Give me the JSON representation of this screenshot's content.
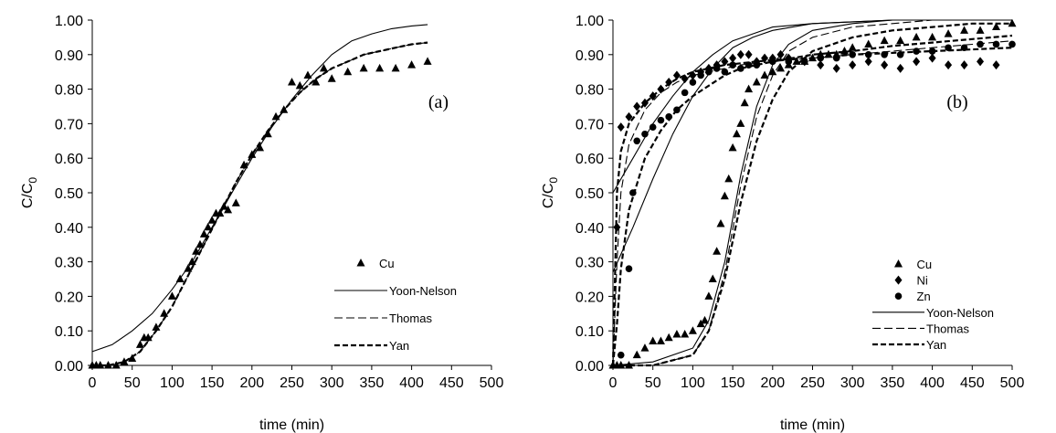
{
  "chart_data": [
    {
      "type": "scatter",
      "panel_label": "(a)",
      "xlabel": "time (min)",
      "ylabel": "C/C",
      "ylabel_sub": "0",
      "xlim": [
        0,
        500
      ],
      "ylim": [
        0,
        1
      ],
      "xticks": [
        0,
        50,
        100,
        150,
        200,
        250,
        300,
        350,
        400,
        450,
        500
      ],
      "yticks": [
        0.0,
        0.1,
        0.2,
        0.3,
        0.4,
        0.5,
        0.6,
        0.7,
        0.8,
        0.9,
        1.0
      ],
      "ytick_labels": [
        "0.00",
        "0.10",
        "0.20",
        "0.30",
        "0.40",
        "0.50",
        "0.60",
        "0.70",
        "0.80",
        "0.90",
        "1.00"
      ],
      "grid": false,
      "legend_position": "bottom-right",
      "legend": [
        {
          "label": "Cu",
          "kind": "triangle"
        },
        {
          "label": "Yoon-Nelson",
          "kind": "solid"
        },
        {
          "label": "Thomas",
          "kind": "dashed"
        },
        {
          "label": "Yan",
          "kind": "bolddash"
        }
      ],
      "series": [
        {
          "name": "Cu",
          "kind": "triangle",
          "x": [
            0,
            5,
            10,
            20,
            30,
            40,
            50,
            60,
            65,
            70,
            80,
            90,
            100,
            110,
            120,
            125,
            130,
            135,
            140,
            145,
            150,
            155,
            160,
            165,
            170,
            180,
            190,
            200,
            210,
            220,
            230,
            240,
            250,
            260,
            270,
            280,
            290,
            300,
            320,
            340,
            360,
            380,
            400,
            420
          ],
          "y": [
            0.0,
            0.0,
            0.0,
            0.0,
            0.0,
            0.01,
            0.02,
            0.06,
            0.08,
            0.08,
            0.11,
            0.15,
            0.2,
            0.25,
            0.28,
            0.3,
            0.33,
            0.35,
            0.38,
            0.4,
            0.42,
            0.44,
            0.44,
            0.46,
            0.45,
            0.47,
            0.58,
            0.61,
            0.63,
            0.67,
            0.72,
            0.74,
            0.82,
            0.81,
            0.84,
            0.82,
            0.86,
            0.83,
            0.85,
            0.86,
            0.86,
            0.86,
            0.87,
            0.88
          ]
        },
        {
          "name": "Yoon-Nelson",
          "kind": "solid",
          "x": [
            0,
            25,
            50,
            75,
            100,
            125,
            150,
            175,
            200,
            225,
            250,
            275,
            300,
            325,
            350,
            375,
            400,
            420
          ],
          "y": [
            0.04,
            0.06,
            0.1,
            0.15,
            0.22,
            0.3,
            0.4,
            0.5,
            0.6,
            0.69,
            0.77,
            0.84,
            0.9,
            0.94,
            0.96,
            0.975,
            0.983,
            0.987
          ]
        },
        {
          "name": "Thomas",
          "kind": "dashed",
          "x": [
            0,
            20,
            40,
            60,
            80,
            100,
            120,
            140,
            160,
            180,
            200,
            220,
            240,
            260,
            280,
            300,
            320,
            340,
            360,
            380,
            400,
            420
          ],
          "y": [
            0.0,
            0.0,
            0.01,
            0.04,
            0.1,
            0.17,
            0.26,
            0.35,
            0.44,
            0.53,
            0.61,
            0.68,
            0.74,
            0.79,
            0.83,
            0.86,
            0.88,
            0.9,
            0.91,
            0.92,
            0.93,
            0.935
          ]
        },
        {
          "name": "Yan",
          "kind": "bolddash",
          "x": [
            0,
            20,
            40,
            60,
            80,
            100,
            120,
            140,
            160,
            180,
            200,
            220,
            240,
            260,
            280,
            300,
            320,
            340,
            360,
            380,
            400,
            420
          ],
          "y": [
            0.0,
            0.0,
            0.01,
            0.04,
            0.1,
            0.17,
            0.26,
            0.35,
            0.44,
            0.53,
            0.61,
            0.68,
            0.74,
            0.79,
            0.83,
            0.86,
            0.88,
            0.9,
            0.91,
            0.92,
            0.93,
            0.935
          ]
        }
      ]
    },
    {
      "type": "scatter",
      "panel_label": "(b)",
      "xlabel": "time (min)",
      "ylabel": "C/C",
      "ylabel_sub": "0",
      "xlim": [
        0,
        500
      ],
      "ylim": [
        0,
        1
      ],
      "xticks": [
        0,
        50,
        100,
        150,
        200,
        250,
        300,
        350,
        400,
        450,
        500
      ],
      "yticks": [
        0.0,
        0.1,
        0.2,
        0.3,
        0.4,
        0.5,
        0.6,
        0.7,
        0.8,
        0.9,
        1.0
      ],
      "ytick_labels": [
        "0.00",
        "0.10",
        "0.20",
        "0.30",
        "0.40",
        "0.50",
        "0.60",
        "0.70",
        "0.80",
        "0.90",
        "1.00"
      ],
      "grid": false,
      "legend_position": "bottom-right",
      "legend": [
        {
          "label": "Cu",
          "kind": "triangle"
        },
        {
          "label": "Ni",
          "kind": "diamond"
        },
        {
          "label": "Zn",
          "kind": "circle"
        },
        {
          "label": "Yoon-Nelson",
          "kind": "solid"
        },
        {
          "label": "Thomas",
          "kind": "dashed"
        },
        {
          "label": "Yan",
          "kind": "bolddash"
        }
      ],
      "series": [
        {
          "name": "Cu",
          "kind": "triangle",
          "x": [
            0,
            5,
            10,
            20,
            30,
            40,
            50,
            60,
            70,
            80,
            90,
            100,
            110,
            115,
            120,
            125,
            130,
            135,
            140,
            145,
            150,
            155,
            160,
            165,
            170,
            180,
            190,
            200,
            210,
            220,
            230,
            240,
            250,
            260,
            270,
            280,
            290,
            300,
            320,
            340,
            360,
            380,
            400,
            420,
            440,
            460,
            480,
            500
          ],
          "y": [
            0.0,
            0.0,
            0.0,
            0.0,
            0.03,
            0.05,
            0.07,
            0.07,
            0.08,
            0.09,
            0.09,
            0.1,
            0.12,
            0.13,
            0.2,
            0.25,
            0.33,
            0.41,
            0.49,
            0.54,
            0.63,
            0.67,
            0.7,
            0.76,
            0.8,
            0.82,
            0.84,
            0.85,
            0.86,
            0.87,
            0.88,
            0.88,
            0.89,
            0.9,
            0.9,
            0.9,
            0.91,
            0.92,
            0.93,
            0.94,
            0.94,
            0.95,
            0.95,
            0.96,
            0.97,
            0.97,
            0.98,
            0.99
          ]
        },
        {
          "name": "Ni",
          "kind": "diamond",
          "x": [
            5,
            10,
            20,
            30,
            40,
            50,
            60,
            70,
            80,
            90,
            100,
            110,
            120,
            130,
            140,
            150,
            160,
            170,
            180,
            190,
            200,
            210,
            220,
            240,
            260,
            280,
            300,
            320,
            340,
            360,
            380,
            400,
            420,
            440,
            460,
            480
          ],
          "y": [
            0.4,
            0.69,
            0.72,
            0.75,
            0.76,
            0.78,
            0.8,
            0.82,
            0.84,
            0.83,
            0.84,
            0.85,
            0.86,
            0.87,
            0.88,
            0.89,
            0.9,
            0.9,
            0.88,
            0.89,
            0.89,
            0.9,
            0.89,
            0.88,
            0.87,
            0.86,
            0.87,
            0.88,
            0.87,
            0.86,
            0.88,
            0.89,
            0.87,
            0.87,
            0.88,
            0.87
          ]
        },
        {
          "name": "Zn",
          "kind": "circle",
          "x": [
            10,
            20,
            25,
            30,
            40,
            50,
            60,
            70,
            80,
            90,
            100,
            110,
            120,
            130,
            140,
            150,
            160,
            170,
            180,
            200,
            220,
            240,
            260,
            280,
            300,
            320,
            340,
            360,
            380,
            400,
            420,
            440,
            460,
            480,
            500
          ],
          "y": [
            0.03,
            0.28,
            0.5,
            0.65,
            0.67,
            0.69,
            0.71,
            0.72,
            0.74,
            0.79,
            0.82,
            0.84,
            0.85,
            0.86,
            0.85,
            0.87,
            0.86,
            0.87,
            0.87,
            0.88,
            0.88,
            0.88,
            0.89,
            0.89,
            0.9,
            0.9,
            0.9,
            0.9,
            0.91,
            0.91,
            0.92,
            0.92,
            0.93,
            0.93,
            0.93
          ]
        },
        {
          "name": "Yoon-Nelson",
          "kind": "solid",
          "x": [
            0,
            25,
            50,
            75,
            100,
            125,
            150,
            175,
            200,
            250,
            300,
            350,
            400,
            450,
            500
          ],
          "y": [
            0.5,
            0.6,
            0.7,
            0.78,
            0.85,
            0.9,
            0.94,
            0.96,
            0.98,
            0.99,
            0.995,
            1.0,
            1.0,
            1.0,
            1.0
          ]
        },
        {
          "name": "Yoon-Nelson",
          "kind": "solid",
          "x": [
            0,
            25,
            50,
            75,
            100,
            125,
            150,
            175,
            200,
            250,
            300,
            350,
            400,
            450,
            500
          ],
          "y": [
            0.27,
            0.4,
            0.54,
            0.67,
            0.78,
            0.86,
            0.92,
            0.95,
            0.97,
            0.99,
            0.995,
            1.0,
            1.0,
            1.0,
            1.0
          ]
        },
        {
          "name": "Yoon-Nelson",
          "kind": "solid",
          "x": [
            0,
            50,
            100,
            120,
            140,
            160,
            180,
            200,
            220,
            250,
            300,
            350,
            400,
            450,
            500
          ],
          "y": [
            0.0,
            0.01,
            0.05,
            0.13,
            0.3,
            0.55,
            0.75,
            0.87,
            0.93,
            0.97,
            0.99,
            1.0,
            1.0,
            1.0,
            1.0
          ]
        },
        {
          "name": "Thomas",
          "kind": "dashed",
          "x": [
            0,
            5,
            10,
            20,
            40,
            60,
            80,
            100,
            120,
            140,
            160,
            180,
            200,
            250,
            300,
            350,
            400,
            450,
            500
          ],
          "y": [
            0.0,
            0.3,
            0.5,
            0.64,
            0.74,
            0.79,
            0.82,
            0.84,
            0.85,
            0.86,
            0.87,
            0.875,
            0.88,
            0.89,
            0.9,
            0.91,
            0.92,
            0.93,
            0.94
          ]
        },
        {
          "name": "Thomas",
          "kind": "dashed",
          "x": [
            0,
            50,
            100,
            120,
            140,
            160,
            180,
            200,
            220,
            250,
            300,
            350,
            400,
            450,
            500
          ],
          "y": [
            0.0,
            0.0,
            0.03,
            0.1,
            0.27,
            0.52,
            0.72,
            0.84,
            0.91,
            0.95,
            0.98,
            0.99,
            1.0,
            1.0,
            1.0
          ]
        },
        {
          "name": "Yan",
          "kind": "bolddash",
          "x": [
            0,
            5,
            10,
            20,
            40,
            60,
            80,
            100,
            120,
            140,
            160,
            180,
            200,
            250,
            300,
            350,
            400,
            450,
            500
          ],
          "y": [
            0.0,
            0.5,
            0.62,
            0.7,
            0.76,
            0.8,
            0.83,
            0.85,
            0.86,
            0.87,
            0.875,
            0.88,
            0.885,
            0.89,
            0.9,
            0.905,
            0.91,
            0.915,
            0.92
          ]
        },
        {
          "name": "Yan",
          "kind": "bolddash",
          "x": [
            0,
            5,
            10,
            20,
            40,
            60,
            80,
            100,
            120,
            140,
            160,
            180,
            200,
            250,
            300,
            350,
            400,
            450,
            500
          ],
          "y": [
            0.0,
            0.12,
            0.28,
            0.45,
            0.6,
            0.68,
            0.74,
            0.78,
            0.81,
            0.84,
            0.86,
            0.87,
            0.88,
            0.9,
            0.91,
            0.925,
            0.935,
            0.945,
            0.955
          ]
        },
        {
          "name": "Yan",
          "kind": "bolddash",
          "x": [
            0,
            50,
            100,
            120,
            140,
            160,
            180,
            200,
            220,
            250,
            300,
            350,
            400,
            450,
            500
          ],
          "y": [
            0.0,
            0.0,
            0.03,
            0.1,
            0.25,
            0.47,
            0.65,
            0.77,
            0.85,
            0.91,
            0.95,
            0.97,
            0.98,
            0.99,
            0.99
          ]
        }
      ]
    }
  ]
}
